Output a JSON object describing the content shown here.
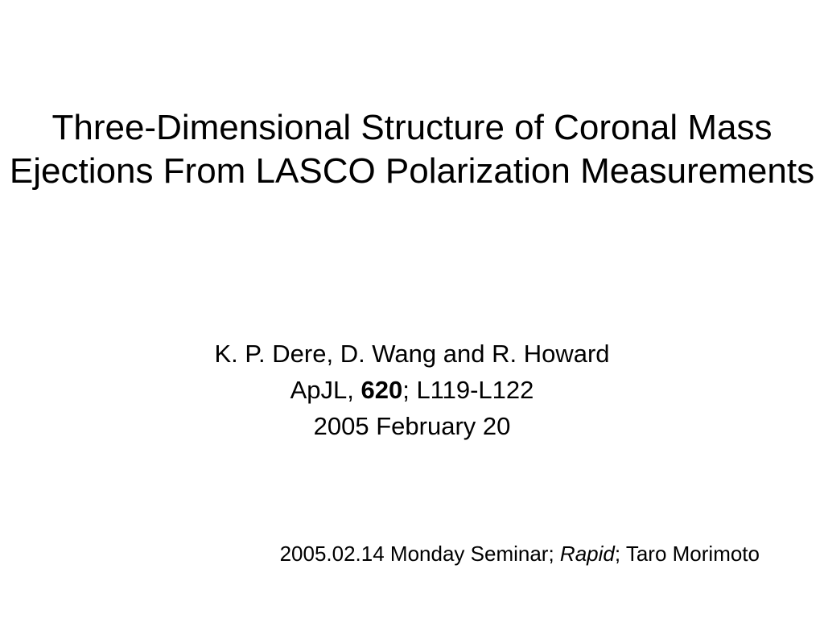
{
  "title": "Three-Dimensional Structure of Coronal Mass Ejections From LASCO Polarization Measurements",
  "authors": "K. P. Dere, D. Wang and R. Howard",
  "journal_prefix": "ApJL, ",
  "journal_volume": "620",
  "journal_suffix": "; L119-L122",
  "pub_date": "2005 February 20",
  "footer_prefix": "2005.02.14 Monday Seminar; ",
  "footer_italic": "Rapid",
  "footer_suffix": "; Taro Morimoto",
  "colors": {
    "background": "#ffffff",
    "text": "#000000"
  },
  "fonts": {
    "title_size": 44,
    "body_size": 31,
    "footer_size": 26,
    "family": "Arial"
  }
}
